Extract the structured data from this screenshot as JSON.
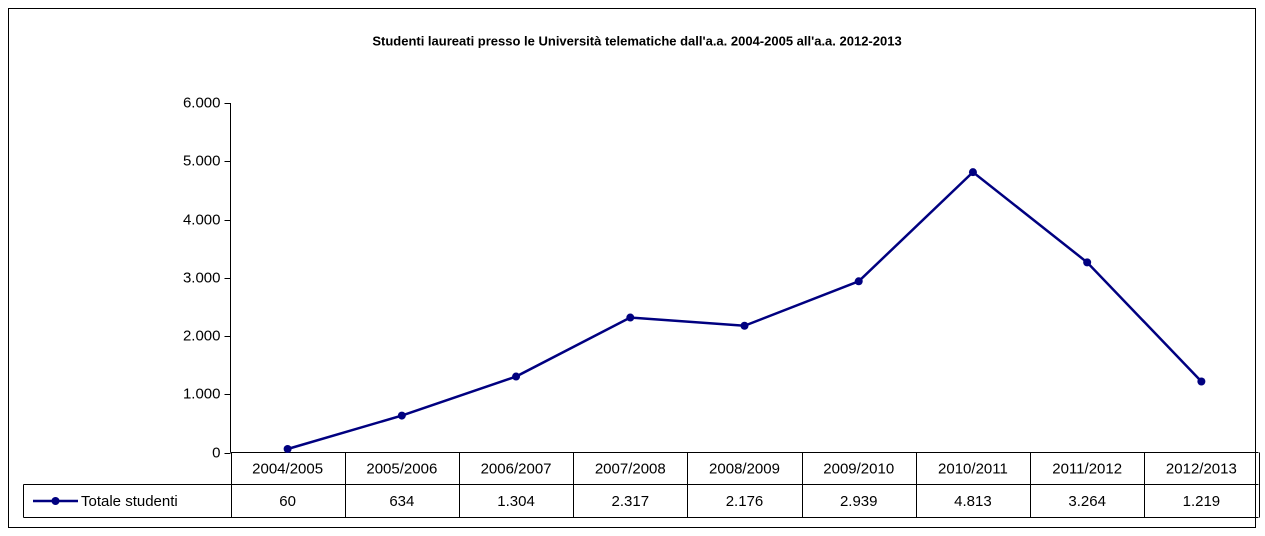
{
  "chart_data": {
    "type": "line",
    "title": "Studenti laureati presso le Università telematiche dall'a.a. 2004-2005 all'a.a. 2012-2013",
    "categories": [
      "2004/2005",
      "2005/2006",
      "2006/2007",
      "2007/2008",
      "2008/2009",
      "2009/2010",
      "2010/2011",
      "2011/2012",
      "2012/2013"
    ],
    "series": [
      {
        "name": "Totale studenti",
        "color": "#000080",
        "values": [
          60,
          634,
          1304,
          2317,
          2176,
          2939,
          4813,
          3264,
          1219
        ],
        "value_labels": [
          "60",
          "634",
          "1.304",
          "2.317",
          "2.176",
          "2.939",
          "4.813",
          "3.264",
          "1.219"
        ]
      }
    ],
    "ylim": [
      0,
      6000
    ],
    "yticks": [
      0,
      {
        "value": 1000,
        "label": "1.000"
      },
      {
        "value": 2000,
        "label": "2.000"
      },
      {
        "value": 3000,
        "label": "3.000"
      },
      {
        "value": 4000,
        "label": "4.000"
      },
      {
        "value": 5000,
        "label": "5.000"
      },
      {
        "value": 6000,
        "label": "6.000"
      }
    ],
    "grid": false
  }
}
